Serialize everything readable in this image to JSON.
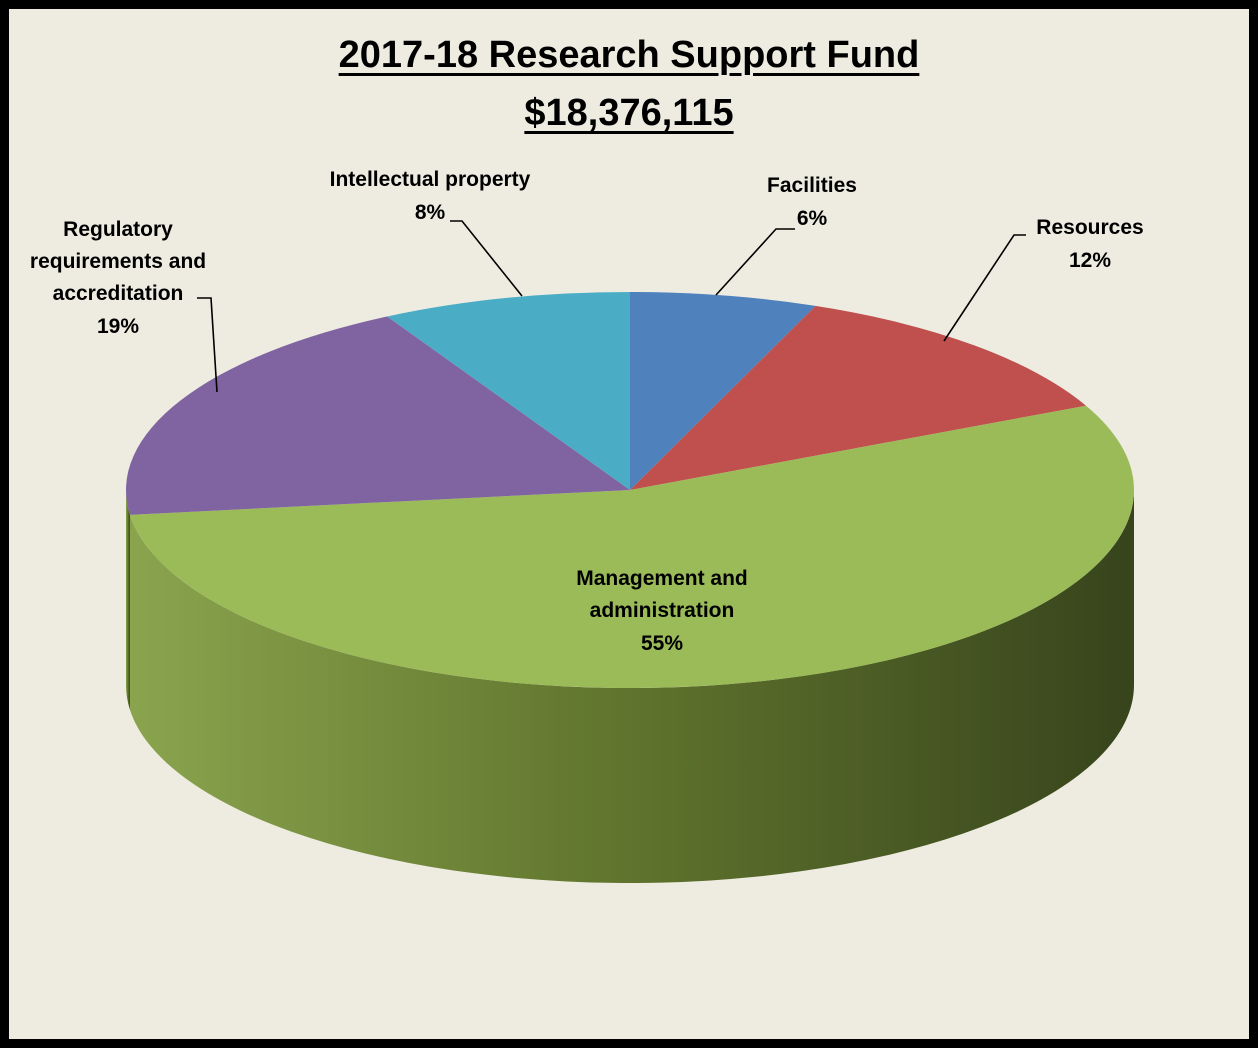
{
  "chart_data": {
    "type": "pie",
    "title": "2017-18 Research Support Fund",
    "subtitle": "$18,376,115",
    "slices": [
      {
        "label": "Facilities",
        "percent_label": "6%",
        "value": 6,
        "color": "#4f81bd"
      },
      {
        "label": "Resources",
        "percent_label": "12%",
        "value": 12,
        "color": "#c0504d"
      },
      {
        "label": "Management and administration",
        "percent_label": "55%",
        "value": 55,
        "color": "#9bbb59"
      },
      {
        "label": "Regulatory requirements and accreditation",
        "percent_label": "19%",
        "value": 19,
        "color": "#8064a2"
      },
      {
        "label": "Intellectual property",
        "percent_label": "8%",
        "value": 8,
        "color": "#4bacc6"
      }
    ],
    "legend": "none",
    "style": "3d-pie"
  },
  "colors": {
    "background": "#eeece1",
    "border": "#000000"
  }
}
